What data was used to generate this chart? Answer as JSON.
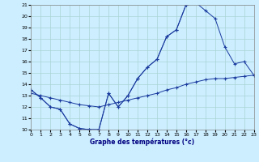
{
  "xlabel": "Graphe des températures (°c)",
  "bg_color": "#cceeff",
  "line_color": "#1a3a9e",
  "grid_color": "#aad4d4",
  "xlim": [
    0,
    23
  ],
  "ylim": [
    10,
    21
  ],
  "xticks": [
    0,
    1,
    2,
    3,
    4,
    5,
    6,
    7,
    8,
    9,
    10,
    11,
    12,
    13,
    14,
    15,
    16,
    17,
    18,
    19,
    20,
    21,
    22,
    23
  ],
  "yticks": [
    10,
    11,
    12,
    13,
    14,
    15,
    16,
    17,
    18,
    19,
    20,
    21
  ],
  "series": [
    {
      "x": [
        0,
        1,
        2,
        3,
        4,
        5,
        6,
        7,
        8,
        9,
        10,
        11,
        12,
        13,
        14,
        15,
        16,
        17
      ],
      "y": [
        13.5,
        12.8,
        12.0,
        11.8,
        10.5,
        10.1,
        10.0,
        10.0,
        13.2,
        12.0,
        13.0,
        14.5,
        15.5,
        16.2,
        18.2,
        18.8,
        21.0,
        21.2
      ]
    },
    {
      "x": [
        0,
        1,
        2,
        3,
        4,
        5,
        6,
        7,
        8,
        9,
        10,
        11,
        12,
        13,
        14,
        15,
        16,
        17,
        18,
        19,
        20,
        21,
        22,
        23
      ],
      "y": [
        13.5,
        12.8,
        12.0,
        11.8,
        10.5,
        10.1,
        10.0,
        10.0,
        13.2,
        12.0,
        13.0,
        14.5,
        15.5,
        16.2,
        18.2,
        18.8,
        21.0,
        21.2,
        20.5,
        19.8,
        17.3,
        15.8,
        16.0,
        14.8
      ]
    },
    {
      "x": [
        0,
        1,
        2,
        3,
        4,
        5,
        6,
        7,
        8,
        9,
        10,
        11,
        12,
        13,
        14,
        15,
        16,
        17,
        18,
        19,
        20,
        21,
        22,
        23
      ],
      "y": [
        13.2,
        13.0,
        12.8,
        12.6,
        12.4,
        12.2,
        12.1,
        12.0,
        12.2,
        12.4,
        12.6,
        12.8,
        13.0,
        13.2,
        13.5,
        13.7,
        14.0,
        14.2,
        14.4,
        14.5,
        14.5,
        14.6,
        14.7,
        14.8
      ]
    }
  ]
}
